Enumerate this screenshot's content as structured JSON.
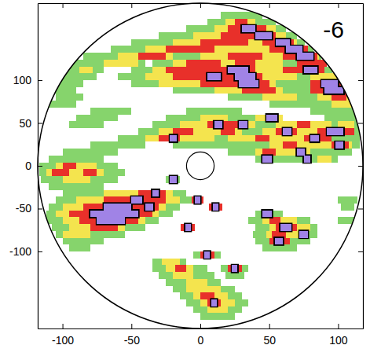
{
  "chart_data": {
    "type": "heatmap",
    "annotation": "-6",
    "xlim": [
      -118,
      118
    ],
    "ylim": [
      -190,
      190
    ],
    "xticks": [
      -100,
      -50,
      0,
      50,
      100
    ],
    "yticks": [
      -100,
      -50,
      0,
      50,
      100
    ],
    "color_levels": [
      20,
      30,
      40,
      50
    ],
    "colors": [
      "#86d46c",
      "#f4e44e",
      "#e8302a",
      "#a083e6"
    ],
    "contour": 50,
    "cell_height": 8,
    "strips": [
      [
        176,
        15,
        45,
        20
      ],
      [
        168,
        5,
        55,
        20
      ],
      [
        168,
        18,
        40,
        30
      ],
      [
        168,
        25,
        34,
        40
      ],
      [
        160,
        -10,
        62,
        20
      ],
      [
        160,
        10,
        55,
        30
      ],
      [
        160,
        20,
        48,
        40
      ],
      [
        160,
        30,
        40,
        50
      ],
      [
        152,
        -30,
        70,
        20
      ],
      [
        152,
        -5,
        62,
        30
      ],
      [
        152,
        15,
        55,
        40
      ],
      [
        152,
        40,
        52,
        50
      ],
      [
        144,
        -50,
        76,
        20
      ],
      [
        144,
        -20,
        70,
        30
      ],
      [
        144,
        0,
        35,
        40
      ],
      [
        144,
        45,
        68,
        40
      ],
      [
        144,
        55,
        65,
        50
      ],
      [
        136,
        -65,
        82,
        20
      ],
      [
        136,
        -40,
        78,
        30
      ],
      [
        136,
        -25,
        10,
        40
      ],
      [
        136,
        50,
        78,
        40
      ],
      [
        136,
        62,
        74,
        50
      ],
      [
        128,
        -85,
        88,
        20
      ],
      [
        128,
        -60,
        -20,
        30
      ],
      [
        128,
        -45,
        -25,
        40
      ],
      [
        128,
        0,
        86,
        30
      ],
      [
        128,
        20,
        45,
        40
      ],
      [
        128,
        60,
        85,
        40
      ],
      [
        128,
        70,
        82,
        50
      ],
      [
        120,
        -95,
        -40,
        20
      ],
      [
        120,
        -70,
        -45,
        30
      ],
      [
        120,
        -35,
        92,
        20
      ],
      [
        120,
        -20,
        60,
        30
      ],
      [
        120,
        -10,
        15,
        40
      ],
      [
        120,
        25,
        40,
        40
      ],
      [
        120,
        70,
        92,
        40
      ],
      [
        112,
        -100,
        -70,
        20
      ],
      [
        112,
        -88,
        -78,
        30
      ],
      [
        112,
        -50,
        96,
        20
      ],
      [
        112,
        -35,
        90,
        30
      ],
      [
        112,
        -25,
        40,
        40
      ],
      [
        112,
        20,
        35,
        50
      ],
      [
        112,
        60,
        90,
        40
      ],
      [
        112,
        75,
        85,
        50
      ],
      [
        104,
        -100,
        -75,
        20
      ],
      [
        104,
        -60,
        100,
        20
      ],
      [
        104,
        -40,
        70,
        30
      ],
      [
        104,
        -20,
        45,
        40
      ],
      [
        104,
        5,
        15,
        50
      ],
      [
        104,
        25,
        40,
        50
      ],
      [
        104,
        80,
        100,
        30
      ],
      [
        96,
        -105,
        -85,
        20
      ],
      [
        96,
        -50,
        104,
        20
      ],
      [
        96,
        -30,
        55,
        30
      ],
      [
        96,
        0,
        50,
        40
      ],
      [
        96,
        28,
        42,
        50
      ],
      [
        96,
        80,
        104,
        40
      ],
      [
        96,
        88,
        100,
        50
      ],
      [
        88,
        -108,
        -90,
        20
      ],
      [
        88,
        -20,
        106,
        20
      ],
      [
        88,
        10,
        60,
        30
      ],
      [
        88,
        30,
        55,
        40
      ],
      [
        88,
        80,
        106,
        40
      ],
      [
        88,
        90,
        104,
        50
      ],
      [
        80,
        -105,
        -85,
        20
      ],
      [
        80,
        20,
        108,
        20
      ],
      [
        80,
        45,
        70,
        30
      ],
      [
        80,
        85,
        108,
        30
      ],
      [
        80,
        95,
        106,
        40
      ],
      [
        72,
        -110,
        -90,
        20
      ],
      [
        72,
        50,
        110,
        20
      ],
      [
        72,
        95,
        110,
        30
      ],
      [
        64,
        -80,
        -50,
        20
      ],
      [
        64,
        -10,
        30,
        20
      ],
      [
        64,
        80,
        112,
        20
      ],
      [
        56,
        -90,
        -60,
        20
      ],
      [
        56,
        -25,
        60,
        20
      ],
      [
        56,
        0,
        20,
        30
      ],
      [
        56,
        40,
        60,
        30
      ],
      [
        56,
        48,
        56,
        50
      ],
      [
        56,
        90,
        114,
        20
      ],
      [
        48,
        -95,
        -70,
        20
      ],
      [
        48,
        -35,
        115,
        20
      ],
      [
        48,
        -15,
        40,
        30
      ],
      [
        48,
        5,
        35,
        40
      ],
      [
        48,
        10,
        16,
        50
      ],
      [
        48,
        28,
        34,
        50
      ],
      [
        48,
        55,
        95,
        30
      ],
      [
        48,
        70,
        80,
        40
      ],
      [
        48,
        100,
        112,
        30
      ],
      [
        40,
        -45,
        116,
        20
      ],
      [
        40,
        -30,
        30,
        30
      ],
      [
        40,
        -20,
        -5,
        40
      ],
      [
        40,
        15,
        25,
        40
      ],
      [
        40,
        45,
        110,
        30
      ],
      [
        40,
        55,
        70,
        40
      ],
      [
        40,
        60,
        66,
        50
      ],
      [
        40,
        85,
        112,
        40
      ],
      [
        40,
        92,
        104,
        50
      ],
      [
        32,
        -60,
        116,
        20
      ],
      [
        32,
        -40,
        10,
        30
      ],
      [
        32,
        -30,
        -15,
        40
      ],
      [
        32,
        -22,
        -17,
        50
      ],
      [
        32,
        20,
        90,
        30
      ],
      [
        32,
        40,
        50,
        40
      ],
      [
        32,
        75,
        95,
        40
      ],
      [
        32,
        80,
        86,
        50
      ],
      [
        24,
        -80,
        -40,
        20
      ],
      [
        24,
        -20,
        40,
        20
      ],
      [
        24,
        30,
        116,
        20
      ],
      [
        24,
        50,
        110,
        30
      ],
      [
        24,
        60,
        70,
        40
      ],
      [
        24,
        95,
        108,
        40
      ],
      [
        24,
        98,
        104,
        50
      ],
      [
        16,
        -100,
        -60,
        20
      ],
      [
        16,
        20,
        110,
        20
      ],
      [
        16,
        40,
        80,
        30
      ],
      [
        16,
        45,
        55,
        40
      ],
      [
        16,
        70,
        76,
        50
      ],
      [
        8,
        -110,
        -70,
        20
      ],
      [
        8,
        40,
        100,
        20
      ],
      [
        8,
        45,
        52,
        50
      ],
      [
        8,
        75,
        80,
        50
      ],
      [
        8,
        85,
        95,
        30
      ],
      [
        0,
        -117,
        -60,
        20
      ],
      [
        0,
        -105,
        -75,
        30
      ],
      [
        0,
        -100,
        -90,
        40
      ],
      [
        -8,
        -117,
        -55,
        20
      ],
      [
        -8,
        -112,
        -70,
        30
      ],
      [
        -8,
        -108,
        -95,
        40
      ],
      [
        -8,
        -85,
        -75,
        40
      ],
      [
        -16,
        -116,
        -60,
        20
      ],
      [
        -16,
        -100,
        -80,
        30
      ],
      [
        -16,
        -25,
        -15,
        20
      ],
      [
        -16,
        -22,
        -17,
        50
      ],
      [
        -24,
        -110,
        -70,
        20
      ],
      [
        -32,
        -100,
        -10,
        20
      ],
      [
        -32,
        -70,
        -20,
        30
      ],
      [
        -32,
        -45,
        -25,
        40
      ],
      [
        -32,
        -35,
        -30,
        50
      ],
      [
        -40,
        -105,
        -5,
        20
      ],
      [
        -40,
        -90,
        -15,
        30
      ],
      [
        -40,
        -70,
        -25,
        40
      ],
      [
        -40,
        -50,
        -42,
        50
      ],
      [
        -40,
        -6,
        2,
        40
      ],
      [
        -40,
        -4,
        0,
        50
      ],
      [
        -40,
        100,
        114,
        20
      ],
      [
        -48,
        -110,
        -15,
        20
      ],
      [
        -48,
        -100,
        -25,
        30
      ],
      [
        -48,
        -85,
        -30,
        40
      ],
      [
        -48,
        -70,
        -50,
        50
      ],
      [
        -48,
        -40,
        -34,
        50
      ],
      [
        -48,
        6,
        16,
        40
      ],
      [
        -48,
        9,
        13,
        50
      ],
      [
        -48,
        102,
        112,
        20
      ],
      [
        -56,
        -112,
        -20,
        20
      ],
      [
        -56,
        -105,
        -30,
        30
      ],
      [
        -56,
        -95,
        -35,
        40
      ],
      [
        -56,
        -80,
        -45,
        50
      ],
      [
        -56,
        40,
        60,
        20
      ],
      [
        -56,
        45,
        52,
        50
      ],
      [
        -64,
        -112,
        -30,
        20
      ],
      [
        -64,
        -100,
        -40,
        30
      ],
      [
        -64,
        -88,
        -45,
        40
      ],
      [
        -64,
        -75,
        -55,
        50
      ],
      [
        -64,
        35,
        80,
        20
      ],
      [
        -64,
        45,
        70,
        30
      ],
      [
        -64,
        50,
        58,
        40
      ],
      [
        -64,
        100,
        112,
        20
      ],
      [
        -72,
        -108,
        -40,
        20
      ],
      [
        -72,
        -95,
        -55,
        30
      ],
      [
        -72,
        -80,
        -60,
        40
      ],
      [
        -72,
        -14,
        -4,
        40
      ],
      [
        -72,
        -11,
        -7,
        50
      ],
      [
        -72,
        40,
        85,
        20
      ],
      [
        -72,
        50,
        80,
        30
      ],
      [
        -72,
        55,
        70,
        40
      ],
      [
        -72,
        58,
        66,
        50
      ],
      [
        -80,
        -105,
        -55,
        20
      ],
      [
        -80,
        -100,
        -80,
        30
      ],
      [
        -80,
        38,
        85,
        20
      ],
      [
        -80,
        48,
        75,
        30
      ],
      [
        -80,
        52,
        62,
        40
      ],
      [
        -80,
        72,
        78,
        50
      ],
      [
        -88,
        -100,
        -70,
        20
      ],
      [
        -88,
        40,
        80,
        20
      ],
      [
        -88,
        50,
        65,
        40
      ],
      [
        -88,
        54,
        60,
        50
      ],
      [
        -96,
        -95,
        -80,
        20
      ],
      [
        -96,
        45,
        70,
        20
      ],
      [
        -104,
        -5,
        15,
        20
      ],
      [
        -104,
        0,
        10,
        40
      ],
      [
        -104,
        3,
        7,
        50
      ],
      [
        -112,
        -35,
        -10,
        20
      ],
      [
        -112,
        -28,
        -15,
        30
      ],
      [
        -120,
        -35,
        5,
        20
      ],
      [
        -120,
        -25,
        -5,
        30
      ],
      [
        -120,
        -18,
        -10,
        40
      ],
      [
        -120,
        15,
        35,
        20
      ],
      [
        -120,
        20,
        30,
        40
      ],
      [
        -120,
        23,
        27,
        50
      ],
      [
        -128,
        -30,
        10,
        20
      ],
      [
        -128,
        -20,
        -5,
        30
      ],
      [
        -128,
        18,
        32,
        20
      ],
      [
        -136,
        -25,
        15,
        20
      ],
      [
        -136,
        -10,
        5,
        30
      ],
      [
        -144,
        -20,
        25,
        20
      ],
      [
        -144,
        -10,
        15,
        30
      ],
      [
        -152,
        -15,
        30,
        20
      ],
      [
        -152,
        -5,
        20,
        30
      ],
      [
        -152,
        0,
        10,
        40
      ],
      [
        -160,
        -10,
        35,
        20
      ],
      [
        -160,
        0,
        25,
        30
      ],
      [
        -160,
        5,
        15,
        40
      ],
      [
        -160,
        8,
        12,
        50
      ],
      [
        -168,
        -5,
        30,
        20
      ],
      [
        -168,
        5,
        20,
        30
      ],
      [
        -176,
        0,
        25,
        20
      ]
    ]
  }
}
